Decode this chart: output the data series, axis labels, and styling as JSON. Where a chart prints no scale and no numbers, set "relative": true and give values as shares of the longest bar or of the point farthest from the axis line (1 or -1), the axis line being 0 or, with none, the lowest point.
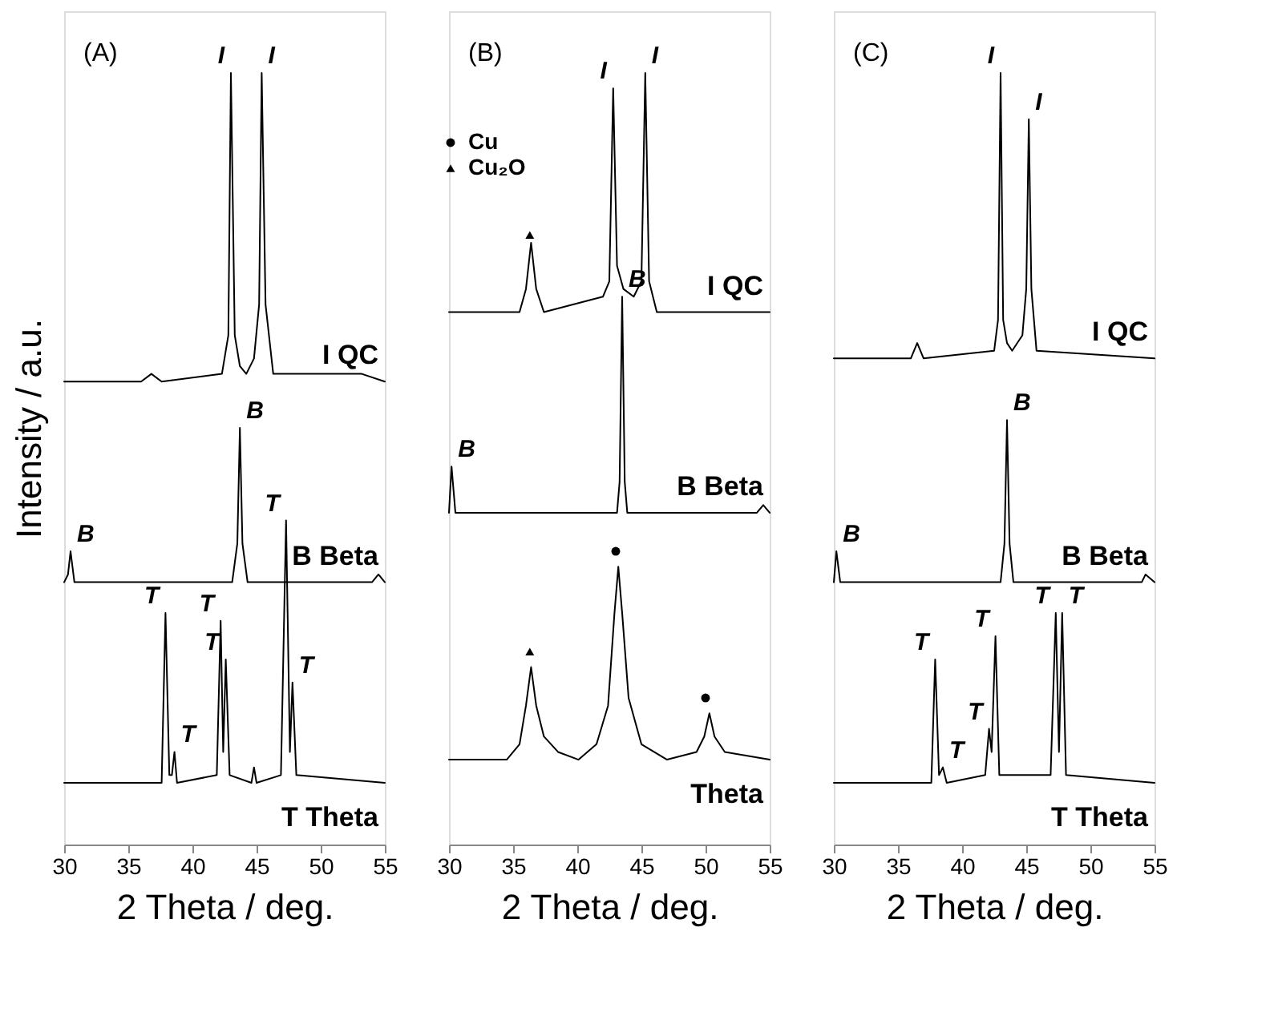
{
  "chart_data": [
    {
      "type": "line",
      "relative": true,
      "ylabel": "Intensity  / a.u.",
      "xlabel": "2 Theta  / deg.",
      "xlim": [
        30,
        55
      ],
      "xticks": [
        30,
        35,
        40,
        45,
        50,
        55
      ],
      "grid": false,
      "series": [
        {
          "name": "I QC",
          "color": "#000000",
          "x": [
            30,
            36,
            36.8,
            37.6,
            42.3,
            42.8,
            43.0,
            43.3,
            43.7,
            44.2,
            44.8,
            45.2,
            45.4,
            45.7,
            46.3,
            53.2,
            55
          ],
          "values": [
            0.6,
            0.6,
            0.61,
            0.6,
            0.61,
            0.66,
            1.0,
            0.66,
            0.62,
            0.61,
            0.63,
            0.7,
            1.0,
            0.7,
            0.61,
            0.61,
            0.6
          ]
        },
        {
          "name": "B Beta",
          "color": "#000000",
          "x": [
            30,
            30.3,
            30.5,
            30.8,
            31.2,
            43.1,
            43.5,
            43.7,
            43.9,
            44.3,
            54,
            54.5,
            55
          ],
          "values": [
            0.34,
            0.35,
            0.38,
            0.34,
            0.34,
            0.34,
            0.39,
            0.54,
            0.39,
            0.34,
            0.34,
            0.35,
            0.34
          ]
        },
        {
          "name": "T Theta",
          "color": "#000000",
          "x": [
            30,
            37.6,
            37.9,
            38.2,
            38.4,
            38.6,
            38.8,
            41.9,
            42.2,
            42.4,
            42.6,
            42.9,
            44.6,
            44.8,
            45.0,
            46.9,
            47.3,
            47.6,
            47.8,
            48.1,
            55
          ],
          "values": [
            0.08,
            0.08,
            0.3,
            0.09,
            0.09,
            0.12,
            0.08,
            0.09,
            0.29,
            0.12,
            0.24,
            0.09,
            0.08,
            0.1,
            0.08,
            0.09,
            0.42,
            0.12,
            0.21,
            0.09,
            0.08
          ]
        }
      ],
      "annotations": [
        "(A)",
        {
          "text": "I",
          "x": 43.0,
          "y": 1.0
        },
        {
          "text": "I",
          "x": 45.4,
          "y": 1.0
        },
        {
          "text": "B",
          "x": 43.7,
          "y": 0.54
        },
        {
          "text": "B",
          "x": 30.5,
          "y": 0.38
        },
        {
          "text": "T",
          "x": 37.9,
          "y": 0.3
        },
        {
          "text": "T",
          "x": 38.6,
          "y": 0.12
        },
        {
          "text": "T",
          "x": 42.2,
          "y": 0.29
        },
        {
          "text": "T",
          "x": 42.6,
          "y": 0.24
        },
        {
          "text": "T",
          "x": 47.3,
          "y": 0.42
        },
        {
          "text": "T",
          "x": 47.8,
          "y": 0.21
        }
      ]
    },
    {
      "type": "line",
      "relative": true,
      "xlabel": "2 Theta  / deg.",
      "xlim": [
        30,
        55
      ],
      "xticks": [
        30,
        35,
        40,
        45,
        50,
        55
      ],
      "grid": false,
      "legend": "top left",
      "series": [
        {
          "name": "I QC",
          "color": "#000000",
          "x": [
            30,
            35.5,
            36.0,
            36.4,
            36.8,
            37.4,
            42.0,
            42.5,
            42.8,
            43.1,
            43.6,
            44.4,
            45.0,
            45.3,
            45.6,
            46.2,
            55
          ],
          "values": [
            0.69,
            0.69,
            0.72,
            0.78,
            0.72,
            0.69,
            0.71,
            0.73,
            0.98,
            0.75,
            0.72,
            0.71,
            0.73,
            1.0,
            0.73,
            0.69,
            0.69
          ]
        },
        {
          "name": "B Beta",
          "color": "#000000",
          "x": [
            30,
            30.2,
            30.5,
            31,
            43.1,
            43.3,
            43.5,
            43.7,
            43.9,
            54,
            54.5,
            55
          ],
          "values": [
            0.43,
            0.49,
            0.43,
            0.43,
            0.43,
            0.47,
            0.71,
            0.47,
            0.43,
            0.43,
            0.44,
            0.43
          ]
        },
        {
          "name": "Theta",
          "color": "#000000",
          "x": [
            30,
            34.5,
            35.5,
            36.0,
            36.4,
            36.8,
            37.4,
            38.5,
            40.1,
            41.5,
            42.4,
            42.9,
            43.2,
            43.5,
            44.0,
            45,
            47,
            49.3,
            49.9,
            50.3,
            50.7,
            51.5,
            55
          ],
          "values": [
            0.11,
            0.11,
            0.13,
            0.18,
            0.23,
            0.18,
            0.14,
            0.12,
            0.11,
            0.13,
            0.18,
            0.3,
            0.36,
            0.3,
            0.19,
            0.13,
            0.11,
            0.12,
            0.14,
            0.17,
            0.14,
            0.12,
            0.11
          ]
        },
        {
          "name": "Cu",
          "type": "scatter",
          "marker": "circle",
          "color": "#000000",
          "x": [
            43.0,
            50.0
          ],
          "values": [
            0.38,
            0.19
          ]
        },
        {
          "name": "Cu₂O",
          "type": "scatter",
          "marker": "triangle",
          "color": "#000000",
          "x": [
            36.3,
            36.3
          ],
          "values": [
            0.79,
            0.25
          ]
        }
      ],
      "annotations": [
        "(B)",
        {
          "text": "I",
          "x": 42.8,
          "y": 0.98
        },
        {
          "text": "I",
          "x": 45.3,
          "y": 1.0
        },
        {
          "text": "B",
          "x": 43.5,
          "y": 0.71
        },
        {
          "text": "B",
          "x": 30.2,
          "y": 0.49
        }
      ]
    },
    {
      "type": "line",
      "relative": true,
      "xlabel": "2 Theta  / deg.",
      "xlim": [
        30,
        55
      ],
      "xticks": [
        30,
        35,
        40,
        45,
        50,
        55
      ],
      "grid": false,
      "series": [
        {
          "name": "I QC",
          "color": "#000000",
          "x": [
            30,
            36,
            36.5,
            37,
            42.5,
            42.8,
            43.0,
            43.2,
            43.5,
            43.9,
            44.7,
            45.0,
            45.2,
            45.4,
            45.8,
            55
          ],
          "values": [
            0.63,
            0.63,
            0.65,
            0.63,
            0.64,
            0.68,
            1.0,
            0.68,
            0.65,
            0.64,
            0.66,
            0.72,
            0.94,
            0.72,
            0.64,
            0.63
          ]
        },
        {
          "name": "B Beta",
          "color": "#000000",
          "x": [
            30,
            30.2,
            30.5,
            31,
            43.0,
            43.3,
            43.5,
            43.7,
            44.0,
            54,
            54.3,
            55
          ],
          "values": [
            0.34,
            0.38,
            0.34,
            0.34,
            0.34,
            0.39,
            0.55,
            0.39,
            0.34,
            0.34,
            0.35,
            0.34
          ]
        },
        {
          "name": "T Theta",
          "color": "#000000",
          "x": [
            30,
            37.6,
            37.9,
            38.2,
            38.5,
            38.8,
            41.8,
            42.1,
            42.3,
            42.6,
            42.9,
            46.9,
            47.3,
            47.55,
            47.8,
            48.1,
            55
          ],
          "values": [
            0.08,
            0.08,
            0.24,
            0.09,
            0.1,
            0.08,
            0.09,
            0.15,
            0.12,
            0.27,
            0.09,
            0.09,
            0.3,
            0.12,
            0.3,
            0.09,
            0.08
          ]
        }
      ],
      "annotations": [
        "(C)",
        {
          "text": "I",
          "x": 43.0,
          "y": 1.0
        },
        {
          "text": "I",
          "x": 45.2,
          "y": 0.94
        },
        {
          "text": "B",
          "x": 43.5,
          "y": 0.55
        },
        {
          "text": "B",
          "x": 30.2,
          "y": 0.38
        },
        {
          "text": "T",
          "x": 37.9,
          "y": 0.24
        },
        {
          "text": "T",
          "x": 38.5,
          "y": 0.1
        },
        {
          "text": "T",
          "x": 42.1,
          "y": 0.15
        },
        {
          "text": "T",
          "x": 42.6,
          "y": 0.27
        },
        {
          "text": "T",
          "x": 47.3,
          "y": 0.3
        },
        {
          "text": "T",
          "x": 47.8,
          "y": 0.3
        }
      ]
    }
  ]
}
